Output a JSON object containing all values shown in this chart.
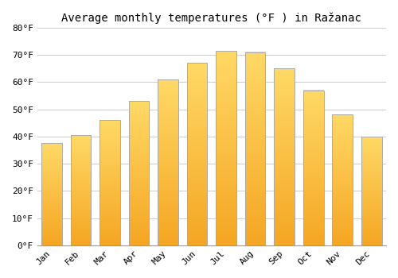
{
  "title": "Average monthly temperatures (°F ) in Ražanac",
  "months": [
    "Jan",
    "Feb",
    "Mar",
    "Apr",
    "May",
    "Jun",
    "Jul",
    "Aug",
    "Sep",
    "Oct",
    "Nov",
    "Dec"
  ],
  "values": [
    37.5,
    40.5,
    46,
    53,
    61,
    67,
    71.5,
    71,
    65,
    57,
    48,
    40
  ],
  "bar_color_bottom": "#F5A623",
  "bar_color_top": "#FFD966",
  "bar_edge_color": "#AAAAAA",
  "ylim": [
    0,
    80
  ],
  "yticks": [
    0,
    10,
    20,
    30,
    40,
    50,
    60,
    70,
    80
  ],
  "ytick_labels": [
    "0°F",
    "10°F",
    "20°F",
    "30°F",
    "40°F",
    "50°F",
    "60°F",
    "70°F",
    "80°F"
  ],
  "background_color": "#FFFFFF",
  "grid_color": "#CCCCCC",
  "title_fontsize": 10,
  "tick_fontsize": 8,
  "font_family": "monospace"
}
